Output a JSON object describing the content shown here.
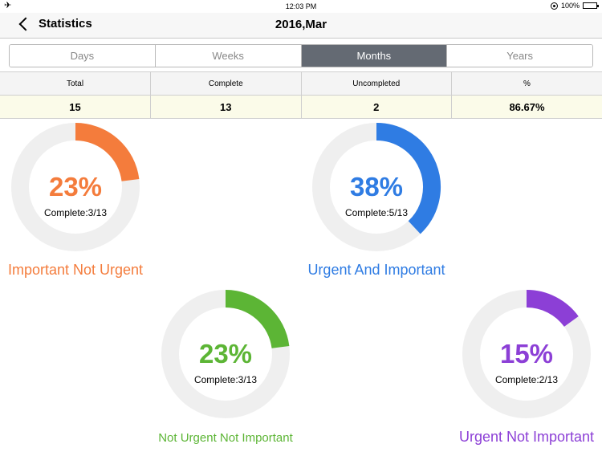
{
  "status_bar": {
    "time": "12:03 PM",
    "battery": "100%"
  },
  "nav": {
    "back_label": "Statistics",
    "title": "2016,Mar"
  },
  "tabs": [
    "Days",
    "Weeks",
    "Months",
    "Years"
  ],
  "active_tab": "Months",
  "summary": {
    "headers": [
      "Total",
      "Complete",
      "Uncompleted",
      "%"
    ],
    "values": [
      "15",
      "13",
      "2",
      "86.67%"
    ]
  },
  "colors": {
    "orange": "#f47c3c",
    "blue": "#2f7ce3",
    "green": "#5cb535",
    "purple": "#8c3fd6",
    "track": "#efefef"
  },
  "charts": [
    {
      "percent_text": "23%",
      "fraction": 0.23,
      "complete_text": "Complete:3/13",
      "label": "Important Not Urgent",
      "color": "#f47c3c"
    },
    {
      "percent_text": "38%",
      "fraction": 0.38,
      "complete_text": "Complete:5/13",
      "label": "Urgent And Important",
      "color": "#2f7ce3"
    },
    {
      "percent_text": "23%",
      "fraction": 0.23,
      "complete_text": "Complete:3/13",
      "label": "Not Urgent Not Important",
      "color": "#5cb535"
    },
    {
      "percent_text": "15%",
      "fraction": 0.15,
      "complete_text": "Complete:2/13",
      "label": "Urgent Not Important",
      "color": "#8c3fd6"
    }
  ]
}
